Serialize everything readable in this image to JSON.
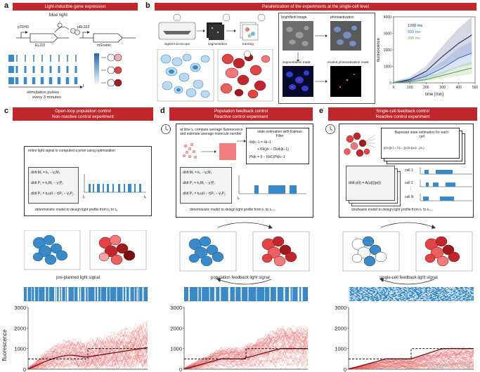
{
  "panels": {
    "a": {
      "letter": "a",
      "banner": "Light-inducible gene expression",
      "labels": {
        "blue_light": "blue light",
        "promoter1": "pTDH3",
        "gene1": "EL222",
        "promoter2": "pEL222",
        "gene2": "mScarlet",
        "stim_label": "stimulation pulses",
        "stim_label2": "every 3 minutes",
        "t": "t"
      }
    },
    "b": {
      "letter": "b",
      "banner": "Parallelization of the experiments at the single-cell level",
      "labels": {
        "microscope": "digital microscope",
        "segmentation": "segmentation",
        "tracking": "tracking",
        "brightfield": "brightfield image",
        "photoactivation": "photoactivation",
        "seg_mask": "segmentation mask",
        "eroded_mask": "eroded photoactivation mask"
      },
      "chart_data": {
        "type": "line",
        "ylabel": "fluorescence",
        "xlabel": "time [min]",
        "xlim": [
          0,
          500
        ],
        "ylim": [
          0,
          4000
        ],
        "xticks": [
          0,
          100,
          200,
          300,
          400,
          500
        ],
        "yticks": [
          0,
          1000,
          2000,
          3000,
          4000
        ],
        "series": [
          {
            "name": "1200 ms",
            "color": "#1a2e6b",
            "x": [
              0,
              100,
              200,
              300,
              400,
              480
            ],
            "y": [
              0,
              200,
              700,
              1600,
              2400,
              2900
            ]
          },
          {
            "name": "600 ms",
            "color": "#3b6fd6",
            "x": [
              0,
              100,
              200,
              300,
              400,
              480
            ],
            "y": [
              0,
              120,
              400,
              900,
              1500,
              1800
            ]
          },
          {
            "name": "200 ms",
            "color": "#6aa84f",
            "x": [
              0,
              100,
              200,
              300,
              400,
              480
            ],
            "y": [
              0,
              60,
              200,
              450,
              700,
              900
            ]
          }
        ]
      }
    },
    "c": {
      "letter": "c",
      "banner_line1": "Open-loop population control",
      "banner_line2": "Non-reactive control experiment",
      "desc": "entire light signal is computed a priori using optimization",
      "eq1": "d/dt M₁ = k₁ − γ₁M₁",
      "eq2": "d/dt P₁ = k₂M₁ − γ₂P₁",
      "eq3": "d/dt P₂ = k₃u(t − τ)P₁ − γ₃P₂",
      "t0": "t₀",
      "tf": "tₑ",
      "model_caption": "deterministic model to design light profile from t₀ to tₑ",
      "signal_caption": "pre-planned light signal",
      "chart_data": {
        "type": "line",
        "ylabel": "fluorescence",
        "ylim": [
          0,
          3000
        ],
        "yticks": [
          0,
          1000,
          2000,
          3000
        ],
        "target": {
          "x": [
            0,
            0.5,
            0.5,
            1
          ],
          "y": [
            500,
            500,
            1000,
            1000
          ]
        }
      }
    },
    "d": {
      "letter": "d",
      "banner_line1": "Population feedback control",
      "banner_line2": "Reactive control experiment",
      "desc": "at time tₖ compute average fluorescence and estimate average molecule number",
      "kalman_title": "state estimation with Kalman Filter",
      "eq_k1": "x̂k|k−1 = x̂k−1",
      "eq_k2": "+ Kk(yk − Ckx̂k|k−1)",
      "eq_k3": "Pk|k = (I − KkC)Pk|k−1",
      "eq1": "d/dt M₁ = k₁ − γ₁M₁",
      "eq2": "d/dt P₁ = k₂M₁ − γ₂P₁",
      "eq3": "d/dt P₂ = k₃u(t − τ)P₁ − γ₃P₂",
      "tk": "tₖ",
      "model_caption": "deterministic model to design light profile from tₖ to tₖ₊ₙ",
      "signal_caption": "population feedback light signal",
      "chart_data": {
        "type": "line",
        "ylim": [
          0,
          3000
        ],
        "yticks": [
          0,
          1000,
          2000,
          3000
        ]
      }
    },
    "e": {
      "letter": "e",
      "banner_line1": "Single-cell feedback control",
      "banner_line2": "Reactive control experiment",
      "bayes_title": "Bayesian state estimation for each cell",
      "bayes_eq": "p(xₖ|yₖ) ∝ fₖ|ₖ₋₁(yₖ|xₖ)pₖ|ₖ₋₁(xₖ)",
      "cell1": "cell 1",
      "cell2": "cell 2",
      "celln": "cell N",
      "dots": "⋮",
      "master_eq": "d/dt p(t) = A(u(t))p(t)",
      "model_caption": "stochastic model to design light profile from tₖ to tₖ₊ₙ",
      "signal_caption": "single-cell feedback light signal",
      "chart_data": {
        "type": "line",
        "ylim": [
          0,
          3000
        ],
        "yticks": [
          0,
          1000,
          2000,
          3000
        ]
      }
    }
  },
  "watermark": "EEBAO.COM",
  "colors": {
    "banner": "#c0272d",
    "blue": "#3a8ac7",
    "light_blue": "#8fc0e6",
    "red": "#c0272d",
    "dark_red": "#7a0f12"
  }
}
